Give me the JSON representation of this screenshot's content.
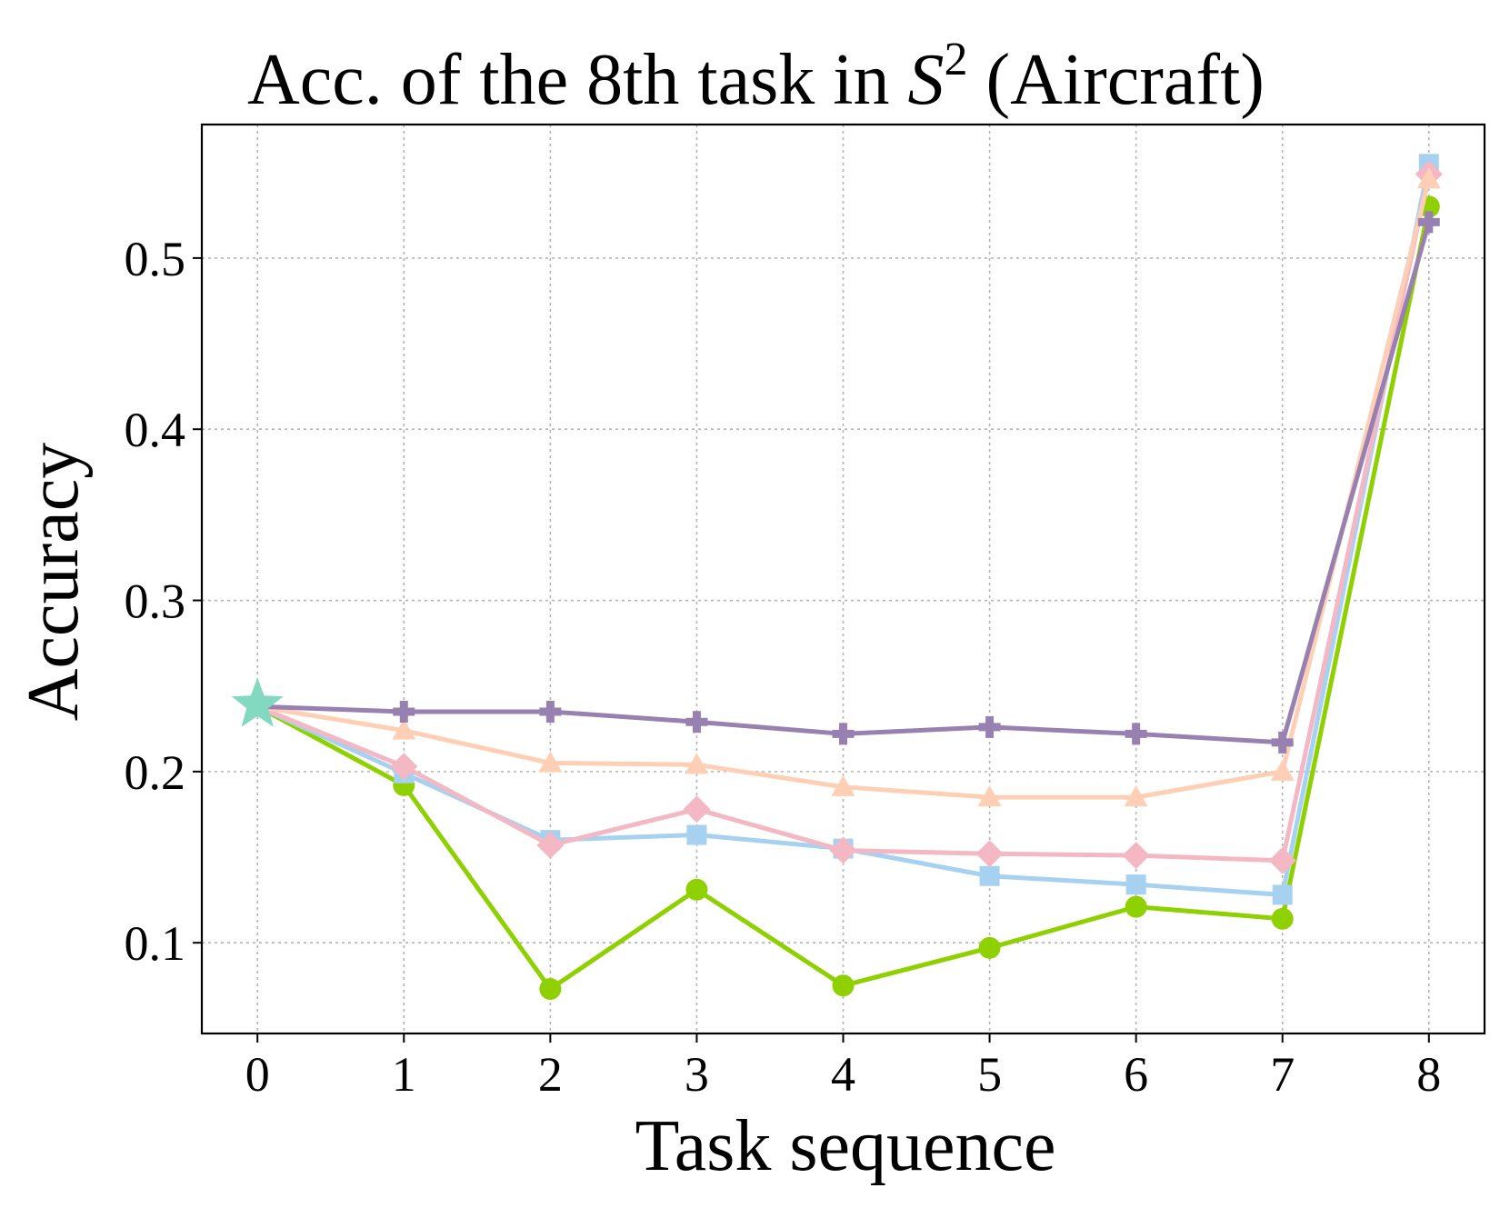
{
  "chart_data": {
    "type": "line",
    "title": "Acc. of the 8th task in ",
    "title_math_symbol": "S",
    "title_superscript": "2",
    "title_suffix": " (Aircraft)",
    "xlabel": "Task sequence",
    "ylabel": "Accuracy",
    "x": [
      0,
      1,
      2,
      3,
      4,
      5,
      6,
      7,
      8
    ],
    "xticks": [
      "0",
      "1",
      "2",
      "3",
      "4",
      "5",
      "6",
      "7",
      "8"
    ],
    "yticks": [
      0.1,
      0.2,
      0.3,
      0.4,
      0.5
    ],
    "ytick_labels": [
      "0.1",
      "0.2",
      "0.3",
      "0.4",
      "0.5"
    ],
    "xlim": [
      -0.38,
      8.38
    ],
    "ylim": [
      0.047,
      0.578
    ],
    "grid": true,
    "start_point": {
      "x": 0,
      "y": 0.239,
      "marker": "star",
      "color": "#82d9c0"
    },
    "series": [
      {
        "color": "#8fd000",
        "marker": "circle",
        "values": [
          0.238,
          0.192,
          0.073,
          0.131,
          0.075,
          0.097,
          0.121,
          0.114,
          0.53
        ]
      },
      {
        "color": "#a6d1f0",
        "marker": "square",
        "values": [
          0.238,
          0.199,
          0.16,
          0.163,
          0.155,
          0.139,
          0.134,
          0.128,
          0.555
        ]
      },
      {
        "color": "#f4b8c4",
        "marker": "diamond",
        "values": [
          0.238,
          0.203,
          0.157,
          0.178,
          0.154,
          0.152,
          0.151,
          0.148,
          0.549
        ]
      },
      {
        "color": "#ffcfb5",
        "marker": "triangle",
        "values": [
          0.238,
          0.224,
          0.205,
          0.204,
          0.191,
          0.185,
          0.185,
          0.2,
          0.546
        ]
      },
      {
        "color": "#9880b0",
        "marker": "plus",
        "values": [
          0.238,
          0.235,
          0.235,
          0.229,
          0.222,
          0.226,
          0.222,
          0.217,
          0.521
        ]
      }
    ]
  }
}
